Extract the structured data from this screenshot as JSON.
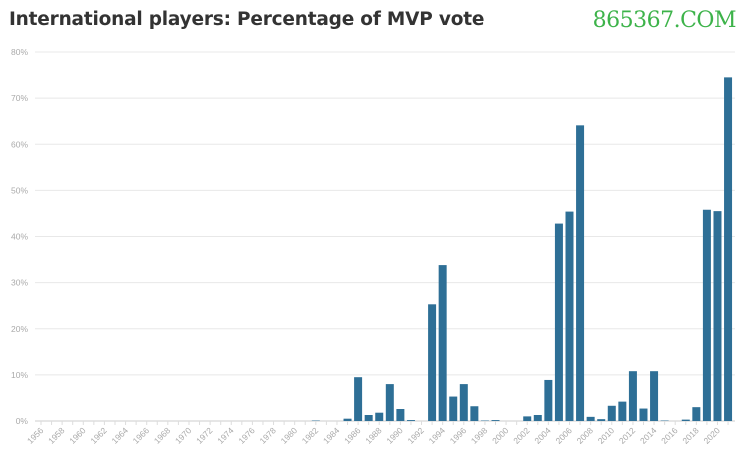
{
  "chart_data": {
    "type": "bar",
    "title": "International players: Percentage of MVP vote",
    "xlabel": "",
    "ylabel": "",
    "ylim": [
      0,
      80
    ],
    "yticks": [
      "0%",
      "10%",
      "20%",
      "30%",
      "40%",
      "50%",
      "60%",
      "70%",
      "80%"
    ],
    "grid": true,
    "bar_color": "#2e6f96",
    "categories": [
      1956,
      1957,
      1958,
      1959,
      1960,
      1961,
      1962,
      1963,
      1964,
      1965,
      1966,
      1967,
      1968,
      1969,
      1970,
      1971,
      1972,
      1973,
      1974,
      1975,
      1976,
      1977,
      1978,
      1979,
      1980,
      1981,
      1982,
      1983,
      1984,
      1985,
      1986,
      1987,
      1988,
      1989,
      1990,
      1991,
      1992,
      1993,
      1994,
      1995,
      1996,
      1997,
      1998,
      1999,
      2000,
      2001,
      2002,
      2003,
      2004,
      2005,
      2006,
      2007,
      2008,
      2009,
      2010,
      2011,
      2012,
      2013,
      2014,
      2015,
      2016,
      2017,
      2018,
      2019,
      2020,
      2021
    ],
    "xticks": [
      "1956",
      "1958",
      "1960",
      "1962",
      "1964",
      "1966",
      "1968",
      "1970",
      "1972",
      "1974",
      "1976",
      "1978",
      "1980",
      "1982",
      "1984",
      "1986",
      "1988",
      "1990",
      "1992",
      "1994",
      "1996",
      "1998",
      "2000",
      "2002",
      "2004",
      "2006",
      "2008",
      "2010",
      "2012",
      "2014",
      "2016",
      "2018",
      "2020"
    ],
    "values": [
      0,
      0,
      0,
      0,
      0,
      0,
      0,
      0,
      0,
      0,
      0,
      0,
      0,
      0,
      0,
      0,
      0,
      0,
      0,
      0,
      0,
      0,
      0,
      0,
      0,
      0,
      0.1,
      0,
      0,
      0.5,
      9.5,
      1.3,
      1.8,
      8.0,
      2.6,
      0.2,
      0,
      25.3,
      33.8,
      5.3,
      8.0,
      3.2,
      0.1,
      0.2,
      0,
      0,
      1.0,
      1.3,
      8.9,
      42.8,
      45.4,
      64.1,
      0.9,
      0.4,
      3.3,
      4.2,
      10.8,
      2.7,
      10.8,
      0.1,
      0,
      0.3,
      3.0,
      45.8,
      45.5,
      74.5
    ]
  },
  "watermark": "865367.COM"
}
